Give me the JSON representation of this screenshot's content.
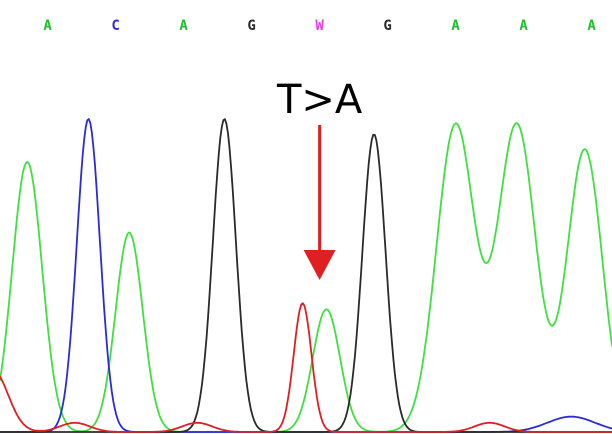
{
  "chart_data": {
    "type": "line",
    "title": "",
    "xlabel": "",
    "ylabel": "",
    "grid": false,
    "legend": "none",
    "base_calls": [
      {
        "base": "A",
        "position": 1,
        "color": "#22c02a"
      },
      {
        "base": "C",
        "position": 2,
        "color": "#2b2bd9"
      },
      {
        "base": "A",
        "position": 3,
        "color": "#22c02a"
      },
      {
        "base": "G",
        "position": 4,
        "color": "#2a2a2a"
      },
      {
        "base": "W",
        "position": 5,
        "color": "#e040e0"
      },
      {
        "base": "G",
        "position": 6,
        "color": "#2a2a2a"
      },
      {
        "base": "A",
        "position": 7,
        "color": "#22c02a"
      },
      {
        "base": "A",
        "position": 8,
        "color": "#22c02a"
      },
      {
        "base": "A",
        "position": 9,
        "color": "#22c02a"
      }
    ],
    "x_range": [
      0.3,
      9.3
    ],
    "y_range": [
      0,
      1.0
    ],
    "annotation": {
      "text": "T>A",
      "position": 5,
      "arrow_color": "#e02020"
    },
    "series": [
      {
        "trace": "A",
        "color": "#3fe03f",
        "peaks": [
          {
            "position": 0.7,
            "height": 0.88,
            "width": 0.22
          },
          {
            "position": 2.2,
            "height": 0.65,
            "width": 0.2
          },
          {
            "position": 5.1,
            "height": 0.4,
            "width": 0.2
          },
          {
            "position": 7.0,
            "height": 1.0,
            "width": 0.28
          },
          {
            "position": 7.9,
            "height": 1.0,
            "width": 0.28
          },
          {
            "position": 8.9,
            "height": 0.92,
            "width": 0.26
          }
        ]
      },
      {
        "trace": "C",
        "color": "#2b2bd9",
        "peaks": [
          {
            "position": 1.6,
            "height": 1.02,
            "width": 0.17
          },
          {
            "position": 8.7,
            "height": 0.05,
            "width": 0.35
          }
        ]
      },
      {
        "trace": "G",
        "color": "#2a2a2a",
        "peaks": [
          {
            "position": 3.6,
            "height": 1.02,
            "width": 0.17
          },
          {
            "position": 5.8,
            "height": 0.97,
            "width": 0.17
          }
        ]
      },
      {
        "trace": "T",
        "color": "#e02020",
        "peaks": [
          {
            "position": 0.2,
            "height": 0.2,
            "width": 0.22
          },
          {
            "position": 1.4,
            "height": 0.03,
            "width": 0.22
          },
          {
            "position": 3.2,
            "height": 0.03,
            "width": 0.22
          },
          {
            "position": 4.75,
            "height": 0.42,
            "width": 0.13
          },
          {
            "position": 7.5,
            "height": 0.03,
            "width": 0.22
          }
        ]
      }
    ]
  }
}
